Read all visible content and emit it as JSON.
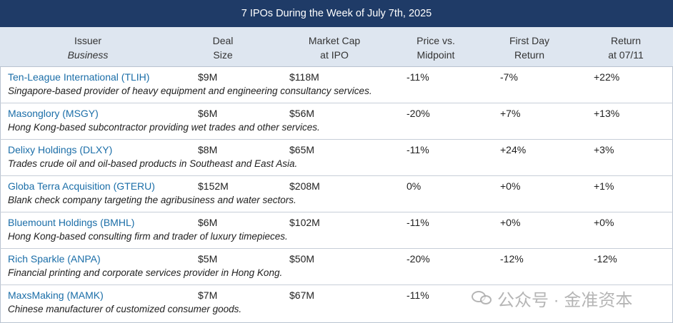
{
  "title": "7 IPOs During the Week of July 7th, 2025",
  "headers": {
    "issuer": "Issuer",
    "business": "Business",
    "deal_1": "Deal",
    "deal_2": "Size",
    "cap_1": "Market Cap",
    "cap_2": "at IPO",
    "mid_1": "Price vs.",
    "mid_2": "Midpoint",
    "fd_1": "First Day",
    "fd_2": "Return",
    "ret_1": "Return",
    "ret_2": "at 07/11"
  },
  "rows": [
    {
      "issuer": "Ten-League International (TLIH)",
      "deal": "$9M",
      "cap": "$118M",
      "mid": "-11%",
      "fd": "-7%",
      "ret": "+22%",
      "biz": "Singapore-based provider of heavy equipment and engineering consultancy services."
    },
    {
      "issuer": "Masonglory (MSGY)",
      "deal": "$6M",
      "cap": "$56M",
      "mid": "-20%",
      "fd": "+7%",
      "ret": "+13%",
      "biz": "Hong Kong-based subcontractor providing wet trades and other services."
    },
    {
      "issuer": "Delixy Holdings (DLXY)",
      "deal": "$8M",
      "cap": "$65M",
      "mid": "-11%",
      "fd": "+24%",
      "ret": "+3%",
      "biz": "Trades crude oil and oil-based products in Southeast and East Asia."
    },
    {
      "issuer": "Globa Terra Acquisition (GTERU)",
      "deal": "$152M",
      "cap": "$208M",
      "mid": "0%",
      "fd": "+0%",
      "ret": "+1%",
      "biz": "Blank check company targeting the agribusiness and water sectors."
    },
    {
      "issuer": "Bluemount Holdings (BMHL)",
      "deal": "$6M",
      "cap": "$102M",
      "mid": "-11%",
      "fd": "+0%",
      "ret": "+0%",
      "biz": "Hong Kong-based consulting firm and trader of luxury timepieces."
    },
    {
      "issuer": "Rich Sparkle (ANPA)",
      "deal": "$5M",
      "cap": "$50M",
      "mid": "-20%",
      "fd": "-12%",
      "ret": "-12%",
      "biz": "Financial printing and corporate services provider in Hong Kong."
    },
    {
      "issuer": "MaxsMaking (MAMK)",
      "deal": "$7M",
      "cap": "$67M",
      "mid": "-11%",
      "fd": "",
      "ret": "",
      "biz": "Chinese manufacturer of customized consumer goods."
    }
  ],
  "watermark": "公众号 · 金准资本"
}
